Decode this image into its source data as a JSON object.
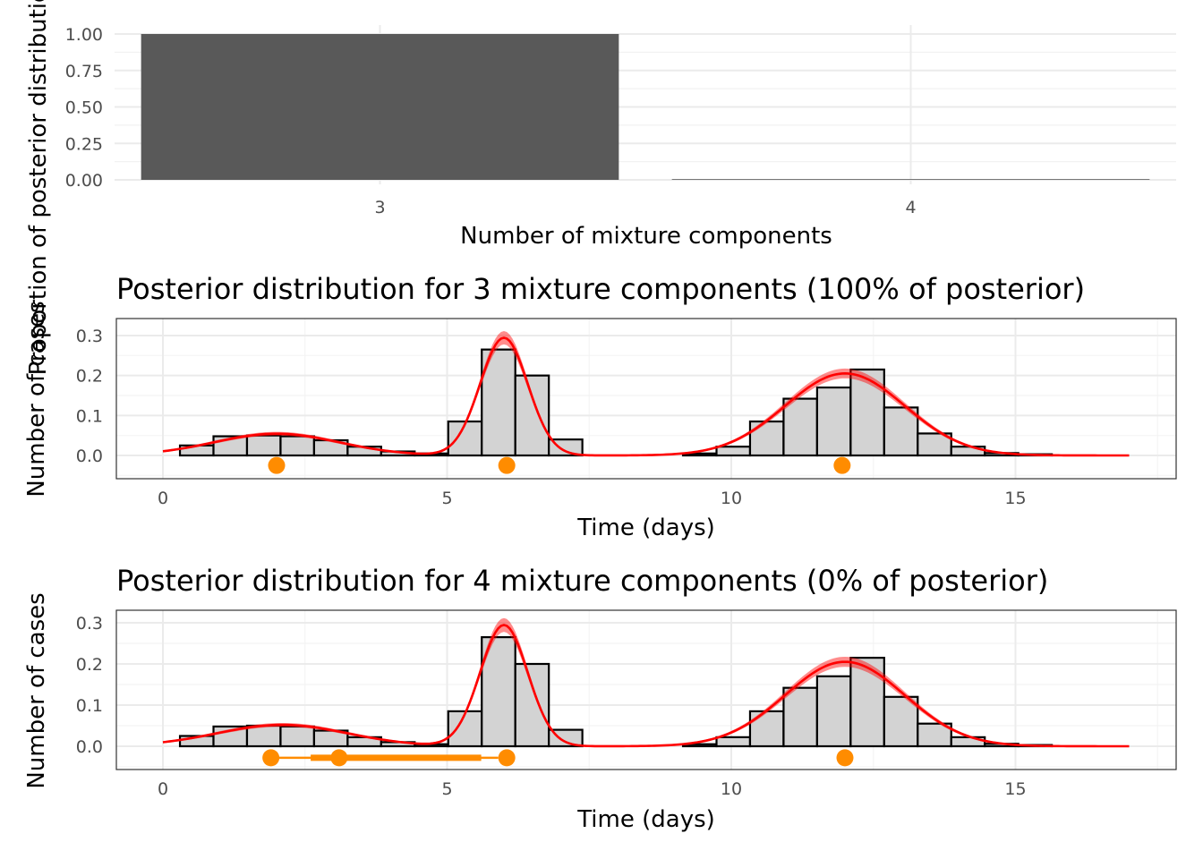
{
  "chart_data": [
    {
      "type": "bar",
      "categories": [
        "3",
        "4"
      ],
      "values": [
        1.0,
        0.0
      ],
      "xlabel": "Number of mixture components",
      "ylabel": "Proportion of posterior distribution",
      "ylim": [
        0,
        1.0
      ],
      "yticks": [
        "0.00",
        "0.25",
        "0.50",
        "0.75",
        "1.00"
      ],
      "bar_color": "#595959",
      "grid": true
    },
    {
      "type": "histogram_with_density",
      "title": "Posterior distribution for 3 mixture components (100% of posterior)",
      "xlabel": "Time (days)",
      "ylabel": "Number of cases",
      "xlim": [
        0,
        17
      ],
      "ylim": [
        -0.03,
        0.33
      ],
      "xticks": [
        0,
        5,
        10,
        15
      ],
      "yticks": [
        "0.0",
        "0.1",
        "0.2",
        "0.3"
      ],
      "bin_width": 0.59,
      "bins_start": 0.3,
      "hist_values": [
        0.025,
        0.048,
        0.05,
        0.048,
        0.038,
        0.022,
        0.01,
        0.005,
        0.085,
        0.265,
        0.2,
        0.04,
        0.0,
        0.0,
        0.0,
        0.005,
        0.022,
        0.085,
        0.142,
        0.17,
        0.215,
        0.12,
        0.055,
        0.022,
        0.006,
        0.003
      ],
      "components": [
        {
          "mean": 2.0,
          "sd": 1.1,
          "weight": 0.15
        },
        {
          "mean": 6.0,
          "sd": 0.42,
          "weight": 0.31
        },
        {
          "mean": 12.0,
          "sd": 1.05,
          "weight": 0.54
        }
      ],
      "band_width": 0.02,
      "peak_markers": [
        {
          "mean": 2.0,
          "lower": 2.0,
          "upper": 2.0
        },
        {
          "mean": 6.05,
          "lower": 6.05,
          "upper": 6.05
        },
        {
          "mean": 11.95,
          "lower": 11.95,
          "upper": 11.95
        }
      ],
      "marker_y": -0.025,
      "hist_fill": "#d3d3d3",
      "density_color": "#ff0000",
      "marker_color": "#ff8c00"
    },
    {
      "type": "histogram_with_density",
      "title": "Posterior distribution for 4 mixture components (0% of posterior)",
      "xlabel": "Time (days)",
      "ylabel": "Number of cases",
      "xlim": [
        0,
        17
      ],
      "ylim": [
        -0.03,
        0.33
      ],
      "xticks": [
        0,
        5,
        10,
        15
      ],
      "yticks": [
        "0.0",
        "0.1",
        "0.2",
        "0.3"
      ],
      "bin_width": 0.59,
      "bins_start": 0.3,
      "hist_values": [
        0.025,
        0.048,
        0.05,
        0.048,
        0.038,
        0.022,
        0.01,
        0.005,
        0.085,
        0.265,
        0.2,
        0.04,
        0.0,
        0.0,
        0.0,
        0.005,
        0.022,
        0.085,
        0.142,
        0.17,
        0.215,
        0.12,
        0.055,
        0.022,
        0.006,
        0.003
      ],
      "components": [
        {
          "mean": 2.1,
          "sd": 1.15,
          "weight": 0.15
        },
        {
          "mean": 6.0,
          "sd": 0.42,
          "weight": 0.31
        },
        {
          "mean": 12.0,
          "sd": 1.05,
          "weight": 0.54
        }
      ],
      "band_width": 0.02,
      "peak_markers": [
        {
          "mean": 1.9,
          "lower": 1.9,
          "upper": 1.9
        },
        {
          "mean": 3.1,
          "lower": 2.0,
          "upper": 5.9,
          "inner_lower": 2.6,
          "inner_upper": 5.6
        },
        {
          "mean": 6.05,
          "lower": 6.05,
          "upper": 6.05
        },
        {
          "mean": 12.0,
          "lower": 12.0,
          "upper": 12.0
        }
      ],
      "marker_y": -0.028,
      "hist_fill": "#d3d3d3",
      "density_color": "#ff0000",
      "marker_color": "#ff8c00"
    }
  ]
}
